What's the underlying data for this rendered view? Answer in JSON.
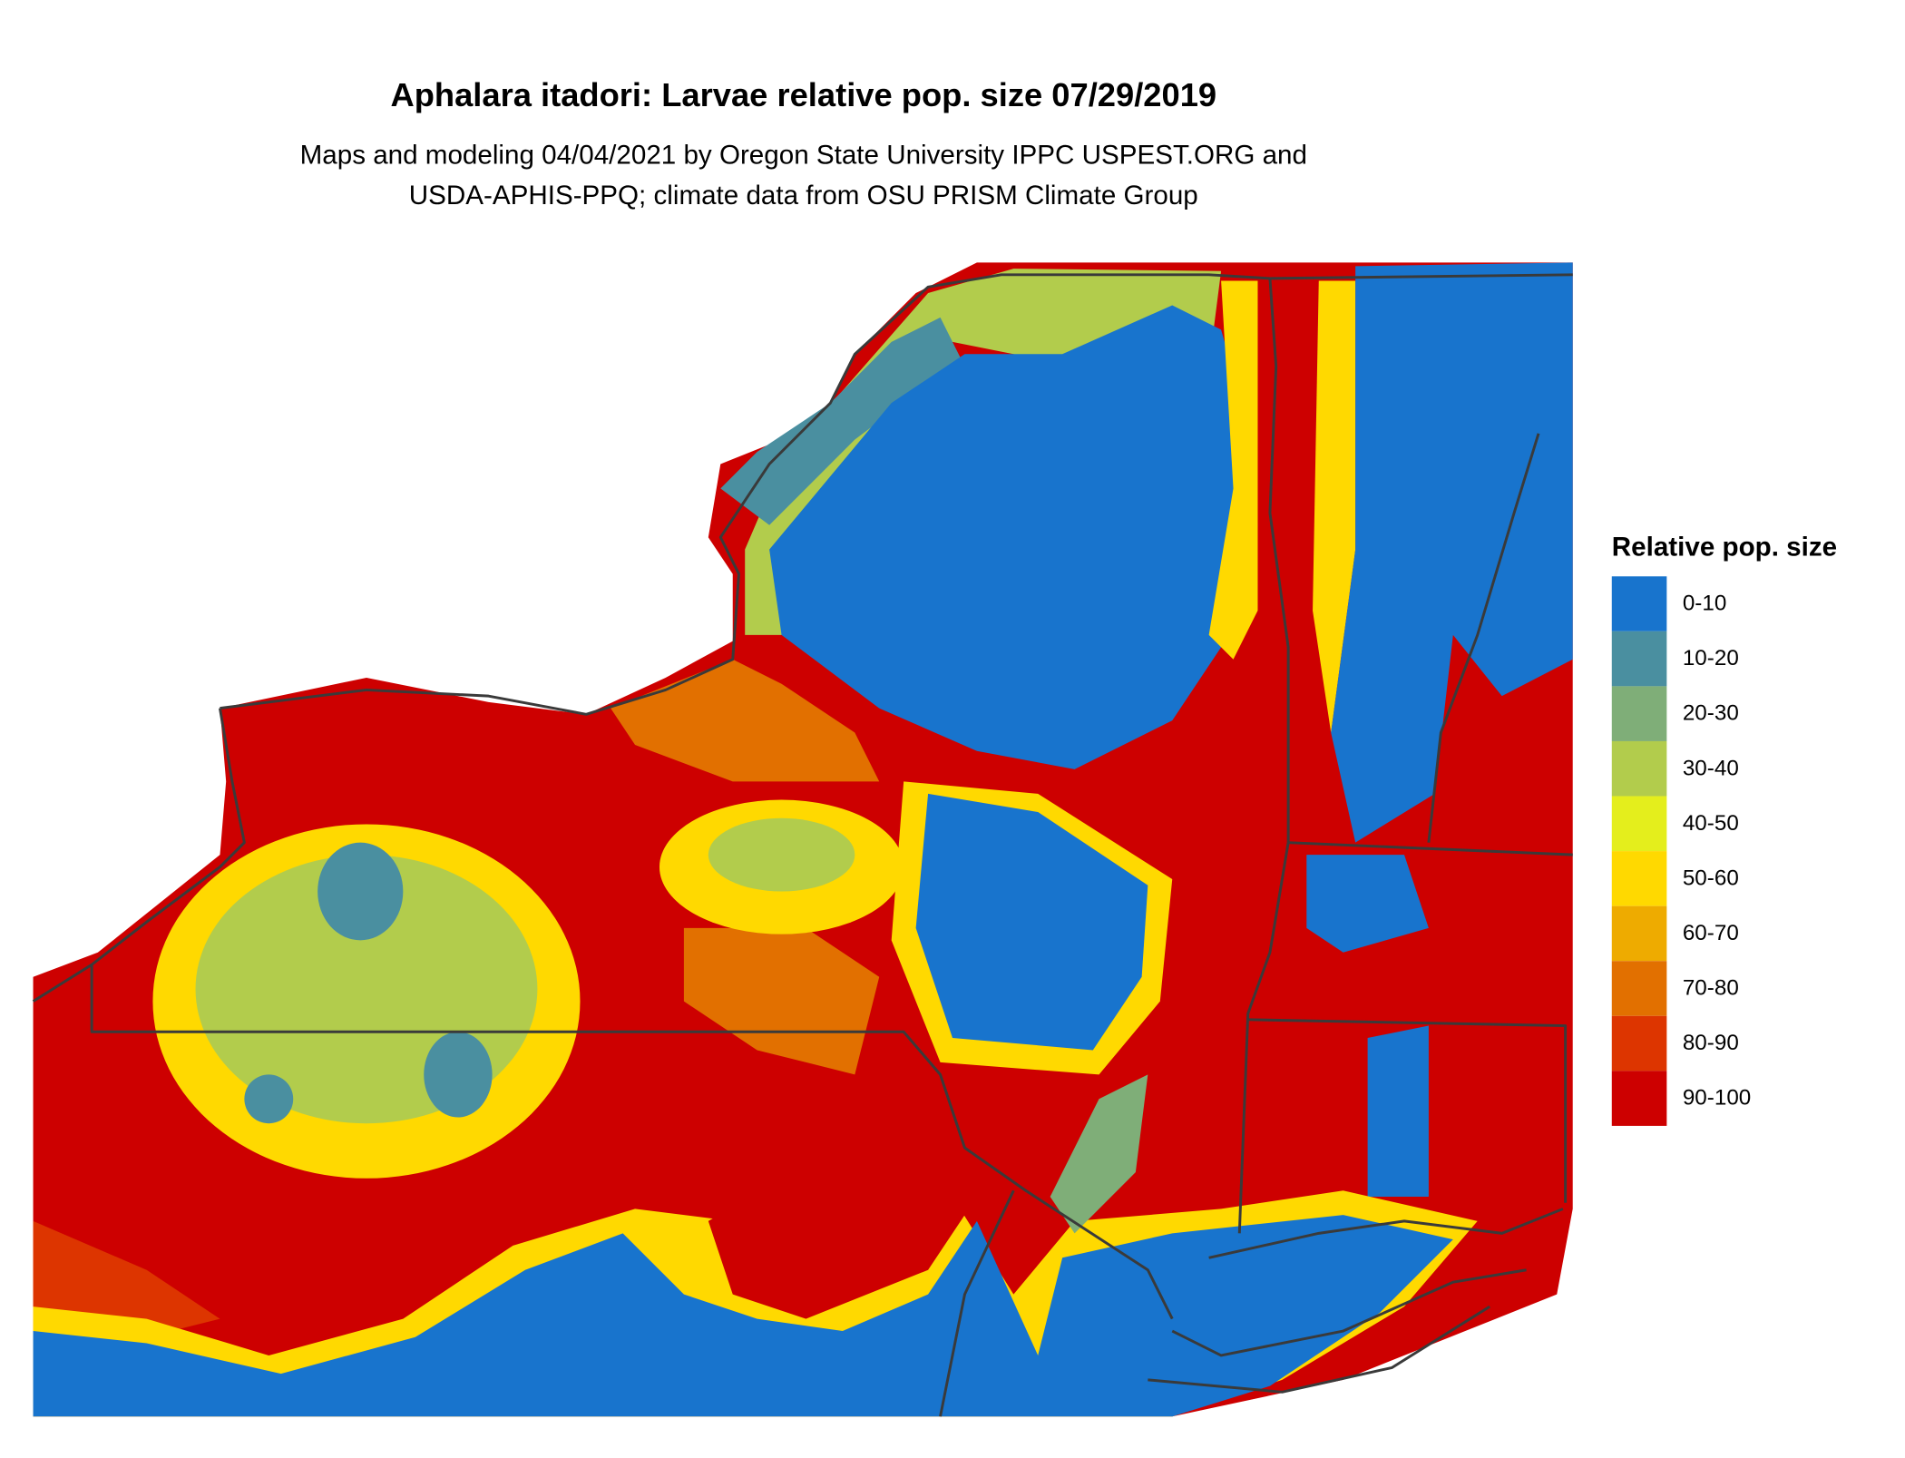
{
  "title": "Aphalara itadori: Larvae relative pop. size 07/29/2019",
  "subtitle": [
    "Maps and modeling 04/04/2021 by Oregon State University IPPC USPEST.ORG and",
    "USDA-APHIS-PPQ; climate data from OSU PRISM Climate Group"
  ],
  "legend": {
    "title": "Relative pop. size",
    "items": [
      {
        "label": "0-10",
        "color": "#1874cd"
      },
      {
        "label": "10-20",
        "color": "#4a8fa0"
      },
      {
        "label": "20-30",
        "color": "#7fae78"
      },
      {
        "label": "30-40",
        "color": "#b2cc4c"
      },
      {
        "label": "40-50",
        "color": "#e4ee1c"
      },
      {
        "label": "50-60",
        "color": "#ffd900"
      },
      {
        "label": "60-70",
        "color": "#eeab00"
      },
      {
        "label": "70-80",
        "color": "#e27000"
      },
      {
        "label": "80-90",
        "color": "#dd3500"
      },
      {
        "label": "90-100",
        "color": "#cd0000"
      }
    ]
  }
}
